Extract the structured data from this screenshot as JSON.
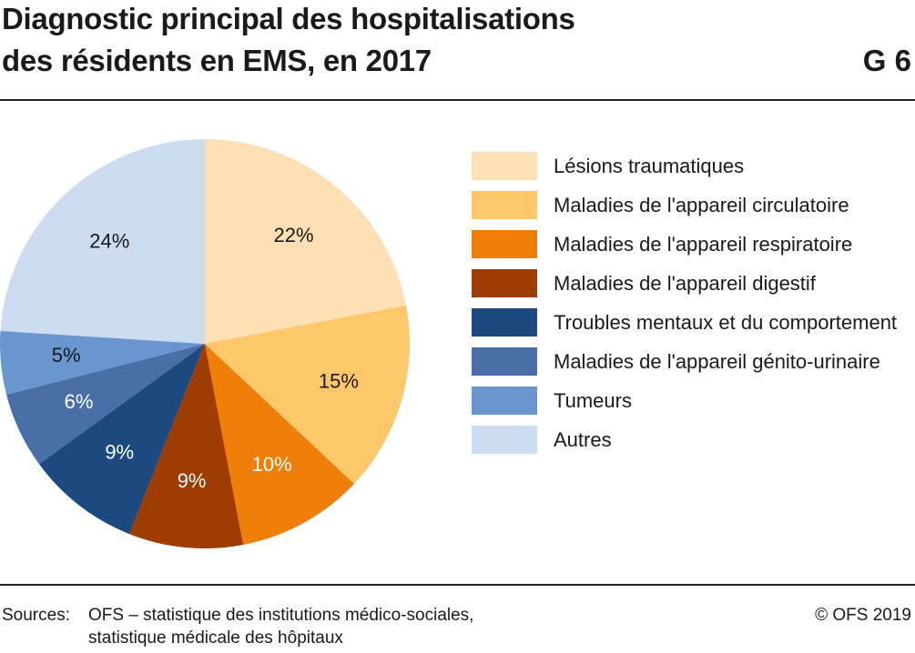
{
  "chart_data": {
    "type": "pie",
    "title": [
      "Diagnostic principal des hospitalisations",
      "des résidents en EMS, en 2017"
    ],
    "figure_number": "G 6",
    "categories": [
      "Lésions traumatiques",
      "Maladies de l'appareil circulatoire",
      "Maladies de l'appareil respiratoire",
      "Maladies de l'appareil digestif",
      "Troubles mentaux et du compor­tement",
      "Maladies de l'appareil génito-urinaire",
      "Tumeurs",
      "Autres"
    ],
    "values": [
      22,
      15,
      10,
      9,
      9,
      6,
      5,
      24
    ],
    "value_labels": [
      "22%",
      "15%",
      "10%",
      "9%",
      "9%",
      "6%",
      "5%",
      "24%"
    ],
    "colors": [
      "#fde0b4",
      "#fdc76a",
      "#f07f09",
      "#9e3d02",
      "#1c4a80",
      "#4a6fa8",
      "#6a96d0",
      "#cddcf0"
    ],
    "source_label": "Sources:",
    "source_lines": [
      "OFS – statistique des institutions médico-sociales,",
      "statistique médicale des hôpitaux"
    ],
    "copyright": "© OFS 2019"
  }
}
